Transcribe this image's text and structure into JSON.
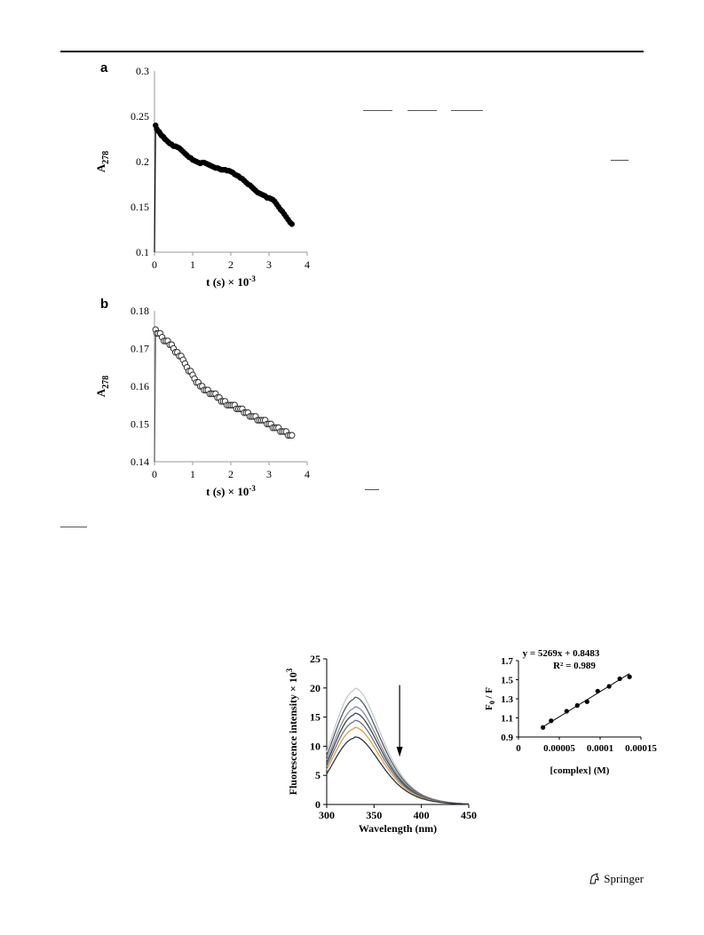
{
  "footer": {
    "publisher": "Springer",
    "logo_icon": "springer-horse-icon"
  },
  "chart_data": [
    {
      "id": "a",
      "type": "scatter",
      "panel_label": "a",
      "xlabel": "t (s) × 10",
      "xlabel_sup": "-3",
      "ylabel": "A",
      "ylabel_sub": "278",
      "xlim": [
        0,
        4
      ],
      "ylim": [
        0.1,
        0.3
      ],
      "xticks": [
        "0",
        "1",
        "2",
        "3",
        "4"
      ],
      "yticks": [
        "0.1",
        "0.15",
        "0.2",
        "0.25",
        "0.3"
      ],
      "marker": "filled",
      "grid": false,
      "x": [
        0.0,
        0.03,
        0.06,
        0.09,
        0.12,
        0.15,
        0.18,
        0.21,
        0.24,
        0.27,
        0.3,
        0.35,
        0.4,
        0.45,
        0.5,
        0.55,
        0.6,
        0.65,
        0.7,
        0.75,
        0.8,
        0.85,
        0.9,
        0.95,
        1.0,
        1.05,
        1.1,
        1.15,
        1.2,
        1.25,
        1.3,
        1.35,
        1.4,
        1.45,
        1.5,
        1.55,
        1.6,
        1.65,
        1.7,
        1.75,
        1.8,
        1.85,
        1.9,
        1.95,
        2.0,
        2.05,
        2.1,
        2.15,
        2.2,
        2.25,
        2.3,
        2.35,
        2.4,
        2.45,
        2.5,
        2.55,
        2.6,
        2.65,
        2.7,
        2.75,
        2.8,
        2.85,
        2.9,
        2.95,
        3.0,
        3.05,
        3.1,
        3.15,
        3.2,
        3.25,
        3.3,
        3.35,
        3.4,
        3.45,
        3.5,
        3.55,
        3.6
      ],
      "y": [
        0.1,
        0.24,
        0.236,
        0.234,
        0.233,
        0.231,
        0.229,
        0.228,
        0.227,
        0.225,
        0.224,
        0.222,
        0.22,
        0.219,
        0.217,
        0.217,
        0.216,
        0.215,
        0.213,
        0.211,
        0.209,
        0.207,
        0.205,
        0.204,
        0.202,
        0.201,
        0.2,
        0.199,
        0.198,
        0.199,
        0.199,
        0.198,
        0.197,
        0.196,
        0.195,
        0.194,
        0.193,
        0.193,
        0.192,
        0.191,
        0.191,
        0.191,
        0.19,
        0.19,
        0.189,
        0.188,
        0.186,
        0.185,
        0.184,
        0.182,
        0.181,
        0.179,
        0.177,
        0.175,
        0.174,
        0.172,
        0.17,
        0.168,
        0.166,
        0.165,
        0.164,
        0.163,
        0.162,
        0.16,
        0.16,
        0.159,
        0.158,
        0.156,
        0.153,
        0.15,
        0.147,
        0.145,
        0.142,
        0.139,
        0.136,
        0.133,
        0.131
      ]
    },
    {
      "id": "b",
      "type": "scatter",
      "panel_label": "b",
      "xlabel": "t (s) × 10",
      "xlabel_sup": "-3",
      "ylabel": "A",
      "ylabel_sub": "278",
      "xlim": [
        0,
        4
      ],
      "ylim": [
        0.14,
        0.18
      ],
      "xticks": [
        "0",
        "1",
        "2",
        "3",
        "4"
      ],
      "yticks": [
        "0.14",
        "0.15",
        "0.16",
        "0.17",
        "0.18"
      ],
      "marker": "open",
      "grid": false,
      "x": [
        0.0,
        0.03,
        0.06,
        0.1,
        0.15,
        0.2,
        0.25,
        0.3,
        0.35,
        0.4,
        0.45,
        0.5,
        0.55,
        0.6,
        0.65,
        0.7,
        0.75,
        0.8,
        0.85,
        0.9,
        0.95,
        1.0,
        1.05,
        1.1,
        1.15,
        1.2,
        1.25,
        1.3,
        1.35,
        1.4,
        1.45,
        1.5,
        1.55,
        1.6,
        1.65,
        1.7,
        1.75,
        1.8,
        1.85,
        1.9,
        1.95,
        2.0,
        2.05,
        2.1,
        2.15,
        2.2,
        2.25,
        2.3,
        2.35,
        2.4,
        2.45,
        2.5,
        2.55,
        2.6,
        2.65,
        2.7,
        2.75,
        2.8,
        2.85,
        2.9,
        2.95,
        3.0,
        3.05,
        3.1,
        3.15,
        3.2,
        3.25,
        3.3,
        3.35,
        3.4,
        3.45,
        3.5,
        3.55,
        3.6
      ],
      "y": [
        0.14,
        0.175,
        0.174,
        0.174,
        0.174,
        0.173,
        0.172,
        0.172,
        0.172,
        0.171,
        0.171,
        0.17,
        0.169,
        0.169,
        0.168,
        0.168,
        0.167,
        0.166,
        0.165,
        0.164,
        0.164,
        0.163,
        0.162,
        0.161,
        0.161,
        0.16,
        0.16,
        0.159,
        0.159,
        0.159,
        0.158,
        0.158,
        0.158,
        0.158,
        0.157,
        0.157,
        0.156,
        0.156,
        0.156,
        0.155,
        0.155,
        0.155,
        0.155,
        0.155,
        0.154,
        0.154,
        0.154,
        0.154,
        0.153,
        0.153,
        0.153,
        0.152,
        0.152,
        0.152,
        0.152,
        0.151,
        0.151,
        0.151,
        0.151,
        0.151,
        0.15,
        0.15,
        0.15,
        0.149,
        0.149,
        0.149,
        0.149,
        0.148,
        0.148,
        0.148,
        0.148,
        0.147,
        0.147,
        0.147
      ]
    },
    {
      "id": "c",
      "type": "line",
      "xlabel": "Wavelength (nm)",
      "ylabel": "Fluorescence intensity × 10",
      "ylabel_sup": "3",
      "xlim": [
        300,
        450
      ],
      "ylim": [
        0,
        25
      ],
      "xticks": [
        "300",
        "350",
        "400",
        "450"
      ],
      "yticks": [
        "0",
        "5",
        "10",
        "15",
        "20",
        "25"
      ],
      "grid": false,
      "arrow": "down",
      "series": [
        {
          "color": "#c8c8c8",
          "peak": 19.6
        },
        {
          "color": "#555d68",
          "peak": 18.1
        },
        {
          "color": "#8a8e94",
          "peak": 16.5
        },
        {
          "color": "#3e4654",
          "peak": 15.4
        },
        {
          "color": "#6d7582",
          "peak": 14.2
        },
        {
          "color": "#d8a24a",
          "peak": 13.0
        },
        {
          "color": "#2d3548",
          "peak": 11.4
        }
      ]
    },
    {
      "id": "d",
      "type": "scatter",
      "xlabel": "[complex]  (M)",
      "ylabel": "F",
      "ylabel_sub": "0",
      "ylabel_rest": " / F",
      "xlim": [
        0,
        0.00015
      ],
      "ylim": [
        0.9,
        1.7
      ],
      "xticks": [
        "0",
        "0.00005",
        "0.0001",
        "0.00015"
      ],
      "yticks": [
        "0.9",
        "1.1",
        "1.3",
        "1.5",
        "1.7"
      ],
      "grid": false,
      "annotation_eq": "y = 5269x + 0.8483",
      "annotation_r2": "R² = 0.989",
      "fit": {
        "slope": 5269,
        "intercept": 0.8483
      },
      "x": [
        3e-05,
        4e-05,
        5.9e-05,
        7.2e-05,
        8.4e-05,
        9.7e-05,
        0.000111,
        0.000124,
        0.000136
      ],
      "y": [
        1.0,
        1.07,
        1.17,
        1.23,
        1.27,
        1.38,
        1.43,
        1.51,
        1.53
      ]
    }
  ]
}
